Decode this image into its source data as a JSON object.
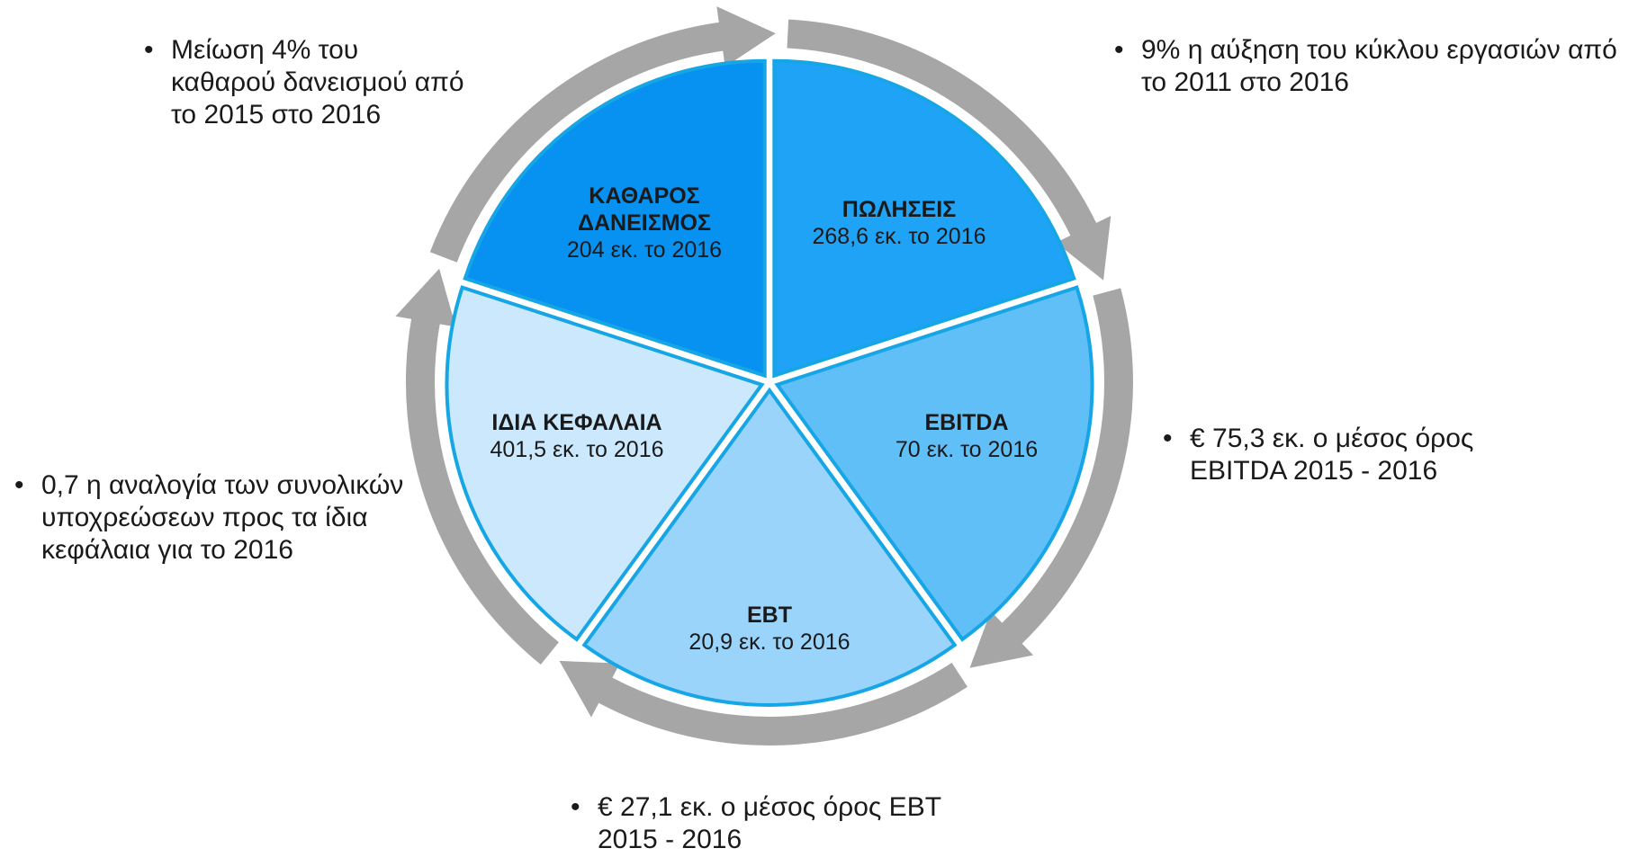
{
  "segments": [
    {
      "title": "ΠΩΛΗΣΕΙΣ",
      "text": "268,6 εκ. το 2016",
      "color": "#1fa3f6"
    },
    {
      "title": "EBITDA",
      "text": "70 εκ. το 2016",
      "color": "#61bff8"
    },
    {
      "title": "EBT",
      "text": "20,9 εκ. το 2016",
      "color": "#9ad4fb"
    },
    {
      "title": "ΙΔΙΑ ΚΕΦΑΛΑΙΑ",
      "text": "401,5 εκ. το 2016",
      "color": "#cbe8fc"
    },
    {
      "title": "ΚΑΘΑΡΟΣ ΔΑΝΕΙΣΜΟΣ",
      "text": "204 εκ. το 2016",
      "color": "#0791f0"
    }
  ],
  "notes": [
    "9% η αύξηση του κύκλου εργασιών από το 2011 στο 2016",
    "€ 75,3 εκ. ο μέσος όρος EBITDA 2015 - 2016",
    "€ 27,1 εκ. ο μέσος όρος EBT 2015 - 2016",
    "0,7 η αναλογία των συνολικών υποχρεώσεων προς τα ίδια κεφάλαια για το 2016",
    "Μείωση 4% του καθαρού δανεισμού από το 2015 στο 2016"
  ]
}
